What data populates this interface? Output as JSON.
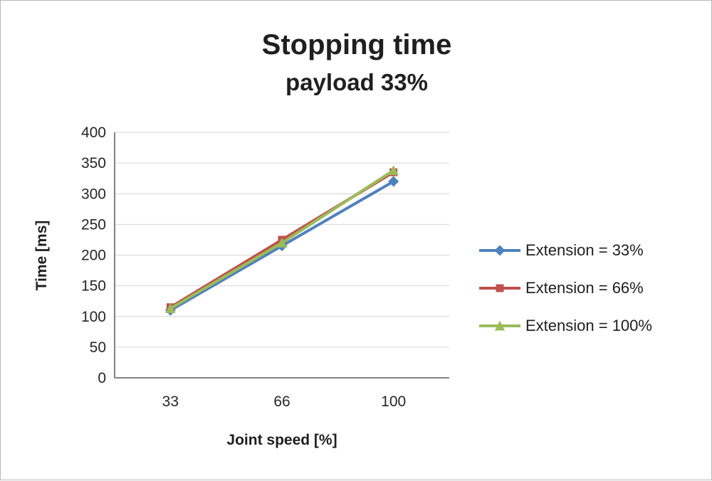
{
  "page": {
    "background": "#ffffff",
    "border_color": "#b9b9b9",
    "text_color": "#1f1f1f",
    "gridline_color": "#d6d6d6",
    "axis_color": "#5a5a5a"
  },
  "chart_data": {
    "type": "line",
    "title": "Stopping time",
    "subtitle": "payload 33%",
    "xlabel": "Joint speed [%]",
    "ylabel": "Time [ms]",
    "categories": [
      "33",
      "66",
      "100"
    ],
    "y_ticks": [
      0,
      50,
      100,
      150,
      200,
      250,
      300,
      350,
      400
    ],
    "ylim": [
      0,
      400
    ],
    "grid": true,
    "legend_position": "right",
    "series": [
      {
        "name": "Extension = 33%",
        "color": "#4f81bd",
        "marker": "diamond",
        "values": [
          110,
          215,
          320
        ]
      },
      {
        "name": "Extension = 66%",
        "color": "#c0504d",
        "marker": "square",
        "values": [
          115,
          225,
          335
        ]
      },
      {
        "name": "Extension = 100%",
        "color": "#9bbb59",
        "marker": "triangle",
        "values": [
          113,
          220,
          338
        ]
      }
    ]
  }
}
